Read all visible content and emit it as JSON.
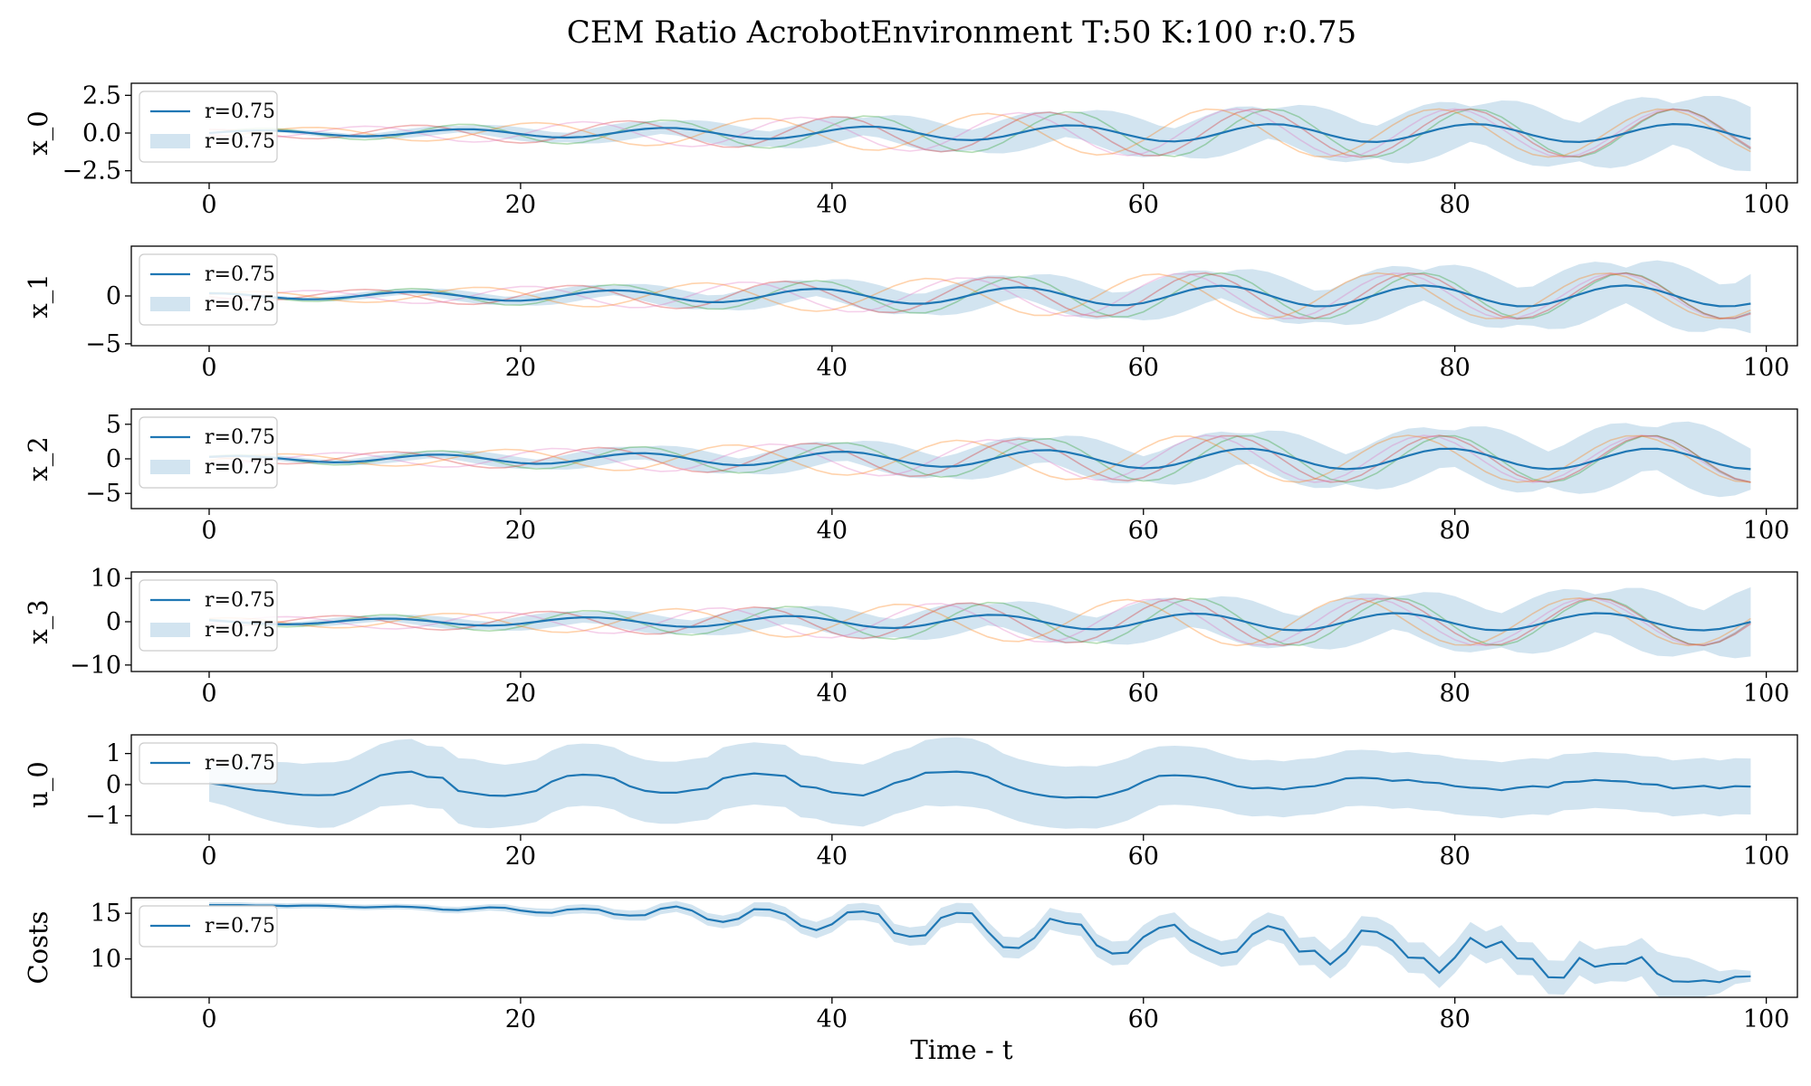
{
  "chart_data": [
    {
      "type": "line",
      "title": "CEM Ratio AcrobotEnvironment T:50 K:100 r:0.75",
      "ylabel": "x_0",
      "xlabel": "",
      "xlim": [
        -5,
        102
      ],
      "ylim": [
        -3.3,
        3.3
      ],
      "xticks": [
        0,
        20,
        40,
        60,
        80,
        100
      ],
      "yticks": [
        2.5,
        0.0,
        -2.5
      ],
      "ytick_labels": [
        "2.5",
        "0.0",
        "−2.5"
      ],
      "legend": {
        "placement": "upper-left",
        "entries": [
          "r=0.75",
          "r=0.75"
        ]
      },
      "mean": {
        "name": "r=0.75",
        "color": "#1f77b4",
        "amplitude": 0.6,
        "period": 13,
        "phase": 0,
        "x_range": [
          0,
          99
        ]
      },
      "band": {
        "name": "r=0.75",
        "color": "#1f77b4",
        "spread_start": 0.05,
        "spread_end": 2.4
      },
      "samples": {
        "colors": [
          "#2ca02c",
          "#d62728",
          "#e377c2",
          "#ff7f0e"
        ],
        "amplitude": 1.6
      }
    },
    {
      "type": "line",
      "ylabel": "x_1",
      "xlim": [
        -5,
        102
      ],
      "ylim": [
        -5.2,
        5.2
      ],
      "xticks": [
        0,
        20,
        40,
        60,
        80,
        100
      ],
      "yticks": [
        0,
        -5
      ],
      "ytick_labels": [
        "0",
        "−5"
      ],
      "legend": {
        "placement": "upper-left",
        "entries": [
          "r=0.75",
          "r=0.75"
        ]
      },
      "mean": {
        "name": "r=0.75",
        "color": "#1f77b4",
        "amplitude": 1.1,
        "period": 13,
        "phase": 1.6,
        "x_range": [
          0,
          99
        ]
      },
      "band": {
        "name": "r=0.75",
        "color": "#1f77b4",
        "spread_start": 0.1,
        "spread_end": 3.6
      },
      "samples": {
        "colors": [
          "#2ca02c",
          "#d62728",
          "#e377c2",
          "#ff7f0e"
        ],
        "amplitude": 2.4
      }
    },
    {
      "type": "line",
      "ylabel": "x_2",
      "xlim": [
        -5,
        102
      ],
      "ylim": [
        -7.2,
        7.2
      ],
      "xticks": [
        0,
        20,
        40,
        60,
        80,
        100
      ],
      "yticks": [
        5,
        0,
        -5
      ],
      "ytick_labels": [
        "5",
        "0",
        "−5"
      ],
      "legend": {
        "placement": "upper-left",
        "entries": [
          "r=0.75",
          "r=0.75"
        ]
      },
      "mean": {
        "name": "r=0.75",
        "color": "#1f77b4",
        "amplitude": 1.5,
        "period": 13,
        "phase": 0.8,
        "x_range": [
          0,
          99
        ]
      },
      "band": {
        "name": "r=0.75",
        "color": "#1f77b4",
        "spread_start": 0.2,
        "spread_end": 5.2
      },
      "samples": {
        "colors": [
          "#2ca02c",
          "#d62728",
          "#e377c2",
          "#ff7f0e"
        ],
        "amplitude": 3.4
      }
    },
    {
      "type": "line",
      "ylabel": "x_3",
      "xlim": [
        -5,
        102
      ],
      "ylim": [
        -11.5,
        11.5
      ],
      "xticks": [
        0,
        20,
        40,
        60,
        80,
        100
      ],
      "yticks": [
        10,
        0,
        -10
      ],
      "ytick_labels": [
        "10",
        "0",
        "−10"
      ],
      "legend": {
        "placement": "upper-left",
        "entries": [
          "r=0.75",
          "r=0.75"
        ]
      },
      "mean": {
        "name": "r=0.75",
        "color": "#1f77b4",
        "amplitude": 2.0,
        "period": 13,
        "phase": 2.4,
        "x_range": [
          0,
          99
        ]
      },
      "band": {
        "name": "r=0.75",
        "color": "#1f77b4",
        "spread_start": 0.4,
        "spread_end": 8.0
      },
      "samples": {
        "colors": [
          "#2ca02c",
          "#d62728",
          "#e377c2",
          "#ff7f0e"
        ],
        "amplitude": 5.5
      }
    },
    {
      "type": "line",
      "ylabel": "u_0",
      "xlim": [
        -5,
        102
      ],
      "ylim": [
        -1.6,
        1.6
      ],
      "xticks": [
        0,
        20,
        40,
        60,
        80,
        100
      ],
      "yticks": [
        1,
        0,
        -1
      ],
      "ytick_labels": [
        "1",
        "0",
        "−1"
      ],
      "legend": {
        "placement": "upper-left",
        "entries": [
          "r=0.75"
        ]
      },
      "mean": {
        "name": "r=0.75",
        "color": "#1f77b4",
        "x_range": [
          0,
          99
        ],
        "values": [
          0.05,
          -0.02,
          -0.1,
          -0.18,
          -0.22,
          -0.28,
          -0.33,
          -0.34,
          -0.33,
          -0.2,
          0.05,
          0.3,
          0.38,
          0.42,
          0.25,
          0.22,
          -0.2,
          -0.28,
          -0.35,
          -0.36,
          -0.3,
          -0.2,
          0.1,
          0.28,
          0.32,
          0.3,
          0.2,
          -0.05,
          -0.2,
          -0.26,
          -0.26,
          -0.18,
          -0.12,
          0.2,
          0.3,
          0.36,
          0.32,
          0.28,
          -0.05,
          -0.1,
          -0.25,
          -0.3,
          -0.35,
          -0.18,
          0.05,
          0.18,
          0.38,
          0.4,
          0.42,
          0.38,
          0.25,
          0.0,
          -0.18,
          -0.3,
          -0.38,
          -0.42,
          -0.4,
          -0.41,
          -0.3,
          -0.15,
          0.1,
          0.28,
          0.3,
          0.28,
          0.22,
          0.1,
          -0.05,
          -0.12,
          -0.1,
          -0.15,
          -0.08,
          -0.05,
          0.05,
          0.2,
          0.22,
          0.2,
          0.12,
          0.15,
          0.08,
          0.05,
          -0.05,
          -0.1,
          -0.12,
          -0.18,
          -0.1,
          -0.05,
          -0.08,
          0.08,
          0.1,
          0.15,
          0.12,
          0.1,
          0.02,
          0.0,
          -0.12,
          -0.08,
          -0.04,
          -0.12,
          -0.05,
          -0.06
        ],
        "spread": [
          0.6,
          0.65,
          0.75,
          0.85,
          0.95,
          1.0,
          1.0,
          1.05,
          1.05,
          1.0,
          1.0,
          1.0,
          1.05,
          1.05,
          1.0,
          1.0,
          1.05,
          1.1,
          1.05,
          1.0,
          1.0,
          1.0,
          1.0,
          1.0,
          1.0,
          1.0,
          1.0,
          1.0,
          1.0,
          1.0,
          1.0,
          1.0,
          1.0,
          1.0,
          1.0,
          1.0,
          1.0,
          1.0,
          1.0,
          1.0,
          1.0,
          1.0,
          1.0,
          1.0,
          1.0,
          1.0,
          1.05,
          1.1,
          1.1,
          1.1,
          1.05,
          1.0,
          1.0,
          1.0,
          1.0,
          1.0,
          1.0,
          1.0,
          1.0,
          1.0,
          1.0,
          0.95,
          0.95,
          0.95,
          0.95,
          0.9,
          0.9,
          0.9,
          0.9,
          0.9,
          0.9,
          0.9,
          0.9,
          0.9,
          0.9,
          0.9,
          0.9,
          0.9,
          0.9,
          0.9,
          0.9,
          0.9,
          0.9,
          0.9,
          0.9,
          0.9,
          0.9,
          0.9,
          0.9,
          0.9,
          0.9,
          0.9,
          0.9,
          0.9,
          0.9,
          0.9,
          0.9,
          0.9,
          0.9,
          0.9
        ]
      }
    },
    {
      "type": "line",
      "ylabel": "Costs",
      "xlabel": "Time - t",
      "xlim": [
        -5,
        102
      ],
      "ylim": [
        5.8,
        16.7
      ],
      "xticks": [
        0,
        20,
        40,
        60,
        80,
        100
      ],
      "yticks": [
        15,
        10
      ],
      "ytick_labels": [
        "15",
        "10"
      ],
      "legend": {
        "placement": "upper-left",
        "entries": [
          "r=0.75"
        ]
      },
      "mean": {
        "name": "r=0.75",
        "color": "#1f77b4",
        "x_range": [
          0,
          99
        ],
        "values": [
          15.9,
          15.9,
          15.9,
          15.85,
          15.85,
          15.8,
          15.85,
          15.85,
          15.8,
          15.7,
          15.65,
          15.7,
          15.75,
          15.7,
          15.6,
          15.4,
          15.35,
          15.5,
          15.65,
          15.6,
          15.3,
          15.1,
          15.05,
          15.4,
          15.5,
          15.4,
          14.9,
          14.75,
          14.8,
          15.5,
          15.75,
          15.3,
          14.35,
          14.05,
          14.4,
          15.45,
          15.4,
          14.9,
          13.65,
          13.15,
          13.8,
          15.1,
          15.2,
          14.9,
          12.85,
          12.45,
          12.6,
          14.5,
          15.05,
          15.0,
          13.0,
          11.3,
          11.2,
          12.3,
          14.4,
          13.95,
          13.75,
          11.5,
          10.6,
          10.7,
          12.4,
          13.4,
          13.75,
          12.1,
          11.25,
          10.55,
          10.8,
          12.7,
          13.6,
          13.15,
          10.8,
          10.9,
          9.4,
          10.8,
          13.1,
          12.95,
          12.0,
          10.15,
          10.1,
          8.5,
          10.15,
          12.3,
          11.25,
          11.9,
          10.05,
          10.0,
          8.0,
          7.95,
          10.1,
          9.15,
          9.45,
          9.5,
          10.2,
          8.4,
          7.55,
          7.5,
          7.65,
          7.45,
          8.05,
          8.1
        ],
        "spread": [
          0.3,
          0.3,
          0.3,
          0.3,
          0.3,
          0.3,
          0.3,
          0.3,
          0.3,
          0.3,
          0.3,
          0.3,
          0.3,
          0.3,
          0.35,
          0.35,
          0.35,
          0.35,
          0.35,
          0.4,
          0.4,
          0.45,
          0.45,
          0.5,
          0.5,
          0.5,
          0.55,
          0.55,
          0.6,
          0.6,
          0.6,
          0.65,
          0.7,
          0.7,
          0.75,
          0.75,
          0.8,
          0.8,
          0.85,
          0.9,
          0.9,
          0.9,
          0.95,
          1.0,
          1.0,
          1.0,
          1.05,
          1.1,
          1.1,
          1.1,
          1.1,
          1.15,
          1.15,
          1.2,
          1.2,
          1.2,
          1.25,
          1.25,
          1.3,
          1.3,
          1.3,
          1.35,
          1.35,
          1.4,
          1.4,
          1.4,
          1.45,
          1.45,
          1.5,
          1.5,
          1.5,
          1.55,
          1.55,
          1.6,
          1.6,
          1.6,
          1.65,
          1.65,
          1.7,
          1.7,
          1.7,
          1.75,
          1.75,
          1.8,
          1.8,
          1.8,
          1.85,
          1.85,
          1.9,
          1.9,
          1.9,
          2.0,
          2.1,
          2.4,
          2.8,
          2.6,
          1.8,
          1.2,
          0.8,
          0.6
        ]
      }
    }
  ]
}
